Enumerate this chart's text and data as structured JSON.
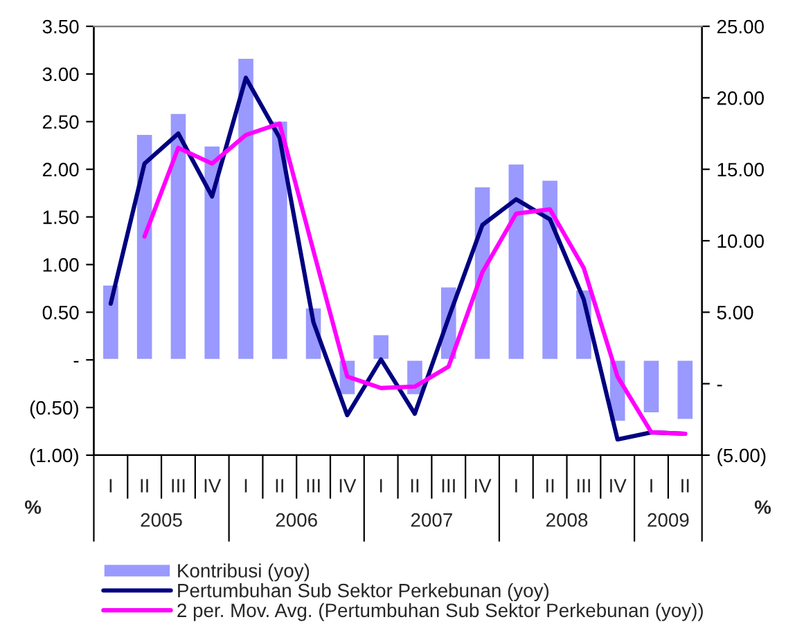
{
  "chart_data": {
    "type": "bar",
    "categories": [
      "I",
      "II",
      "III",
      "IV",
      "I",
      "II",
      "III",
      "IV",
      "I",
      "II",
      "III",
      "IV",
      "I",
      "II",
      "III",
      "IV",
      "I",
      "II"
    ],
    "series": [
      {
        "name": "Kontribusi (yoy)",
        "color": "#9999ff",
        "values": [
          0.79,
          2.37,
          2.59,
          2.25,
          3.17,
          2.51,
          0.55,
          -0.37,
          0.27,
          -0.37,
          0.77,
          1.82,
          2.06,
          1.89,
          0.74,
          -0.65,
          -0.56,
          -0.63
        ]
      },
      {
        "name": "Pertumbuhan Sub Sektor Perkebunan (yoy)",
        "type": "line",
        "axis": "y2",
        "color": "#000080",
        "values": [
          5.6,
          15.4,
          17.5,
          13.1,
          21.4,
          17.2,
          4.3,
          -2.2,
          1.7,
          -2.1,
          4.6,
          11.1,
          12.9,
          11.5,
          5.9,
          -3.9,
          -3.4,
          -3.5
        ]
      },
      {
        "name": "2 per. Mov. Avg. (Pertumbuhan Sub Sektor Perkebunan (yoy))",
        "type": "line",
        "axis": "y2",
        "color": "#ff00ff",
        "values": [
          null,
          10.3,
          16.5,
          15.4,
          17.4,
          18.2,
          9.3,
          0.5,
          -0.3,
          -0.2,
          1.2,
          7.8,
          11.9,
          12.2,
          8.1,
          0.5,
          -3.4,
          -3.5
        ]
      }
    ],
    "ylabel": "%",
    "y2label": "%",
    "ylim": [
      -1.0,
      3.5
    ],
    "yticks": [
      {
        "value": -1.0,
        "label": "(1.00)"
      },
      {
        "value": -0.5,
        "label": "(0.50)"
      },
      {
        "value": 0,
        "label": "-"
      },
      {
        "value": 0.5,
        "label": "0.50"
      },
      {
        "value": 1.0,
        "label": "1.00"
      },
      {
        "value": 1.5,
        "label": "1.50"
      },
      {
        "value": 2.0,
        "label": "2.00"
      },
      {
        "value": 2.5,
        "label": "2.50"
      },
      {
        "value": 3.0,
        "label": "3.00"
      },
      {
        "value": 3.5,
        "label": "3.50"
      }
    ],
    "y2lim": [
      -5.0,
      25.0
    ],
    "y2ticks": [
      {
        "value": -5.0,
        "label": "(5.00)"
      },
      {
        "value": 0,
        "label": "-"
      },
      {
        "value": 5.0,
        "label": "5.00"
      },
      {
        "value": 10.0,
        "label": "10.00"
      },
      {
        "value": 15.0,
        "label": "15.00"
      },
      {
        "value": 20.0,
        "label": "20.00"
      },
      {
        "value": 25.0,
        "label": "25.00"
      }
    ],
    "annotations": [
      "2005",
      "2006",
      "2007",
      "2008",
      "2009"
    ],
    "legend": "bottom",
    "grid": false,
    "marker": "none",
    "line_style": "solid"
  }
}
